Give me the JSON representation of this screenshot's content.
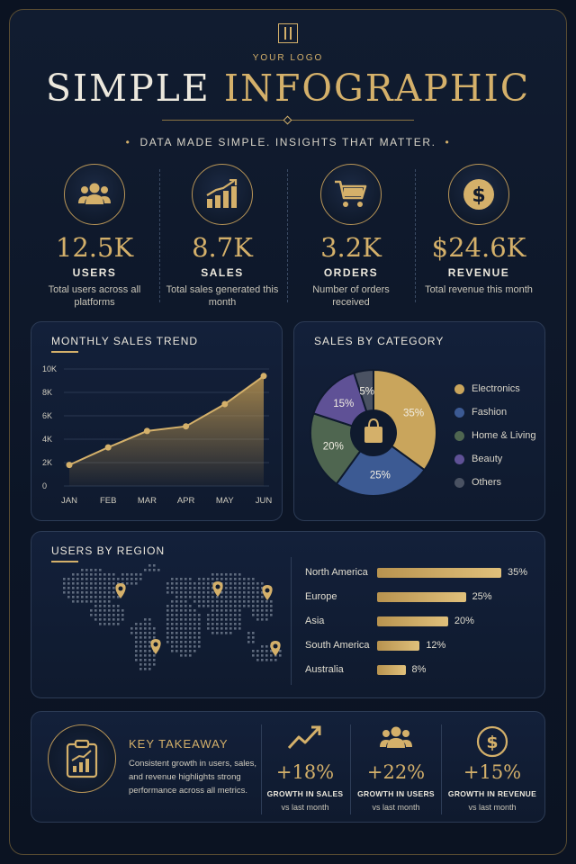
{
  "header": {
    "logo_text": "YOUR LOGO",
    "title_part1": "SIMPLE",
    "title_part2": "INFOGRAPHIC",
    "subtitle": "DATA MADE SIMPLE. INSIGHTS THAT MATTER."
  },
  "kpis": [
    {
      "icon": "users-icon",
      "value": "12.5K",
      "label": "USERS",
      "desc": "Total users across all platforms"
    },
    {
      "icon": "bar-chart-icon",
      "value": "8.7K",
      "label": "SALES",
      "desc": "Total sales generated this month"
    },
    {
      "icon": "cart-icon",
      "value": "3.2K",
      "label": "ORDERS",
      "desc": "Number of orders received"
    },
    {
      "icon": "dollar-icon",
      "value": "$24.6K",
      "label": "REVENUE",
      "desc": "Total revenue this month"
    }
  ],
  "sales_trend": {
    "title": "MONTHLY SALES TREND"
  },
  "sales_category": {
    "title": "SALES BY CATEGORY"
  },
  "regions": {
    "title": "USERS BY REGION"
  },
  "key_takeaway": {
    "title": "KEY TAKEAWAY",
    "text": "Consistent growth in users, sales, and revenue highlights strong performance across all metrics.",
    "growth": [
      {
        "icon": "trend-up-icon",
        "value": "+18%",
        "label": "GROWTH IN SALES",
        "sub": "vs last month"
      },
      {
        "icon": "users-icon",
        "value": "+22%",
        "label": "GROWTH IN USERS",
        "sub": "vs last month"
      },
      {
        "icon": "dollar-icon",
        "value": "+15%",
        "label": "GROWTH IN REVENUE",
        "sub": "vs last month"
      }
    ]
  },
  "colors": {
    "gold": "#d4b06a",
    "electronics": "#c9a55c",
    "fashion": "#3c5a93",
    "home": "#4f6650",
    "beauty": "#5f5196",
    "others": "#4a5262"
  },
  "chart_data": [
    {
      "type": "area",
      "title": "MONTHLY SALES TREND",
      "categories": [
        "JAN",
        "FEB",
        "MAR",
        "APR",
        "MAY",
        "JUN"
      ],
      "values": [
        1800,
        3300,
        4700,
        5100,
        7000,
        9400
      ],
      "ylim": [
        0,
        10000
      ],
      "yticks": [
        "0",
        "2K",
        "4K",
        "6K",
        "8K",
        "10K"
      ],
      "grid": true
    },
    {
      "type": "pie",
      "title": "SALES BY CATEGORY",
      "categories": [
        "Electronics",
        "Fashion",
        "Home & Living",
        "Beauty",
        "Others"
      ],
      "values": [
        35,
        25,
        20,
        15,
        5
      ],
      "labels": [
        "35%",
        "25%",
        "20%",
        "15%",
        "5%"
      ],
      "legend": "right"
    },
    {
      "type": "bar",
      "title": "USERS BY REGION",
      "categories": [
        "North America",
        "Europe",
        "Asia",
        "South America",
        "Australia"
      ],
      "values": [
        35,
        25,
        20,
        12,
        8
      ],
      "labels": [
        "35%",
        "25%",
        "20%",
        "12%",
        "8%"
      ]
    }
  ]
}
